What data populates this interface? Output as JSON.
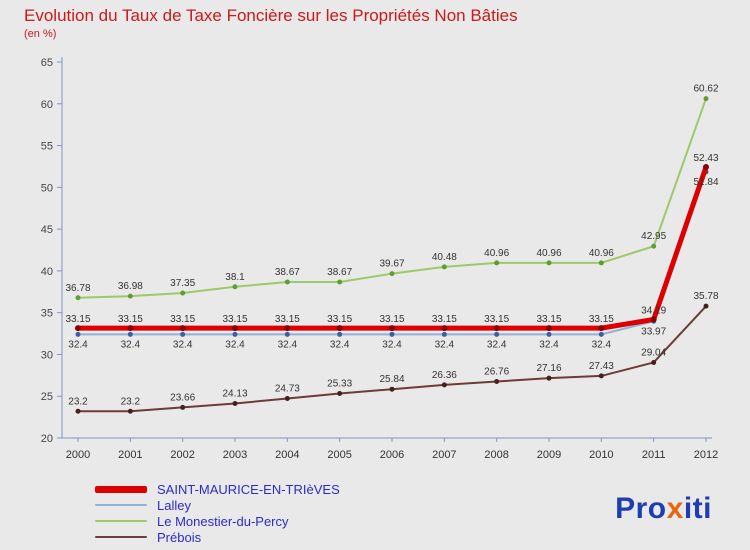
{
  "title": "Evolution du Taux de Taxe Foncière sur les Propriétés Non Bâties",
  "subtitle": "(en %)",
  "logo": {
    "part1": "Pro",
    "part2": "x",
    "part3": "iti"
  },
  "chart_data": {
    "type": "line",
    "x": [
      2000,
      2001,
      2002,
      2003,
      2004,
      2005,
      2006,
      2007,
      2008,
      2009,
      2010,
      2011,
      2012
    ],
    "ylim": [
      20,
      65
    ],
    "yticks": [
      20,
      25,
      30,
      35,
      40,
      45,
      50,
      55,
      60,
      65
    ],
    "grid": false,
    "legend_position": "bottom-left",
    "axis_color": "#8293c8",
    "label_color": "#333333",
    "series": [
      {
        "name": "SAINT-MAURICE-EN-TRIèVES",
        "color": "#dd0000",
        "marker_color": "#8b0000",
        "line_width": 5,
        "marker_r": 3,
        "label_dy": -6,
        "legend_bar": 7,
        "values": [
          33.15,
          33.15,
          33.15,
          33.15,
          33.15,
          33.15,
          33.15,
          33.15,
          33.15,
          33.15,
          33.15,
          34.19,
          52.43
        ]
      },
      {
        "name": "Lalley",
        "color": "#8fb2d8",
        "marker_color": "#3a5fa0",
        "line_width": 2,
        "marker_r": 2.5,
        "label_dy": 13,
        "legend_bar": 2,
        "values": [
          32.4,
          32.4,
          32.4,
          32.4,
          32.4,
          32.4,
          32.4,
          32.4,
          32.4,
          32.4,
          32.4,
          33.97,
          51.84
        ]
      },
      {
        "name": "Le Monestier-du-Percy",
        "color": "#9cc96a",
        "marker_color": "#5f9e32",
        "line_width": 2,
        "marker_r": 2.5,
        "label_dy": -7,
        "legend_bar": 2,
        "values": [
          36.78,
          36.98,
          37.35,
          38.1,
          38.67,
          38.67,
          39.67,
          40.48,
          40.96,
          40.96,
          40.96,
          42.95,
          60.62
        ]
      },
      {
        "name": "Prébois",
        "color": "#6e3a3a",
        "marker_color": "#46201f",
        "line_width": 2,
        "marker_r": 2.5,
        "label_dy": -7,
        "legend_bar": 2,
        "values": [
          23.2,
          23.2,
          23.66,
          24.13,
          24.73,
          25.33,
          25.84,
          26.36,
          26.76,
          27.16,
          27.43,
          29.04,
          35.78
        ]
      }
    ]
  }
}
